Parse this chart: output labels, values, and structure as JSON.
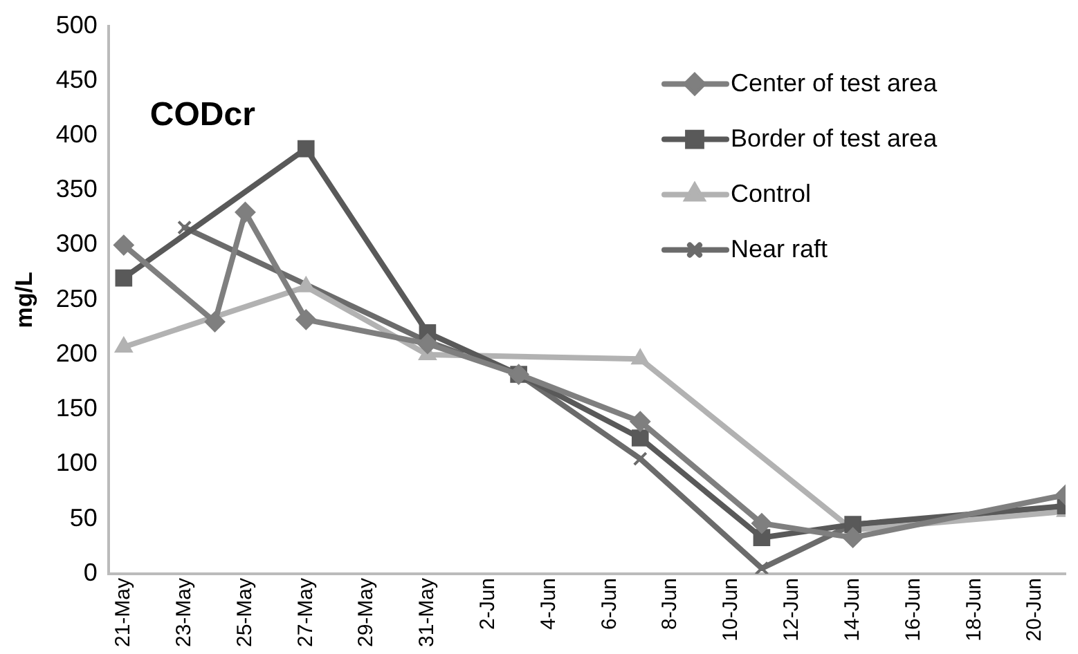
{
  "chart_data": {
    "type": "line",
    "title": "CODcr",
    "ylabel": "mg/L",
    "xlim": [
      "--05-20T12:00",
      "--06-21"
    ],
    "xticks": [
      {
        "value": "--05-21",
        "label": "21-May"
      },
      {
        "value": "--05-23",
        "label": "23-May"
      },
      {
        "value": "--05-25",
        "label": "25-May"
      },
      {
        "value": "--05-27",
        "label": "27-May"
      },
      {
        "value": "--05-29",
        "label": "29-May"
      },
      {
        "value": "--05-31",
        "label": "31-May"
      },
      {
        "value": "--06-02",
        "label": "2-Jun"
      },
      {
        "value": "--06-04",
        "label": "4-Jun"
      },
      {
        "value": "--06-06",
        "label": "6-Jun"
      },
      {
        "value": "--06-08",
        "label": "8-Jun"
      },
      {
        "value": "--06-10",
        "label": "10-Jun"
      },
      {
        "value": "--06-12",
        "label": "12-Jun"
      },
      {
        "value": "--06-14",
        "label": "14-Jun"
      },
      {
        "value": "--06-16",
        "label": "16-Jun"
      },
      {
        "value": "--06-18",
        "label": "18-Jun"
      },
      {
        "value": "--06-20",
        "label": "20-Jun"
      }
    ],
    "ylim": [
      0,
      500
    ],
    "yticks": [
      0,
      50,
      100,
      150,
      200,
      250,
      300,
      350,
      400,
      450,
      500
    ],
    "grid": false,
    "legend": "top right",
    "line_style": "solid",
    "series": [
      {
        "name": "Center of test area",
        "color": "#7f7f7f",
        "marker": "diamond",
        "x": [
          "--05-21",
          "--05-24",
          "--05-25",
          "--05-27",
          "--05-31",
          "--06-03",
          "--06-07",
          "--06-11",
          "--06-14",
          "--06-21"
        ],
        "values": [
          300,
          230,
          330,
          232,
          210,
          182,
          139,
          46,
          33,
          72
        ]
      },
      {
        "name": "Border of test area",
        "color": "#595959",
        "marker": "square",
        "x": [
          "--05-21",
          "--05-27",
          "--05-31",
          "--06-03",
          "--06-07",
          "--06-11",
          "--06-14",
          "--06-21"
        ],
        "values": [
          270,
          388,
          220,
          182,
          124,
          33,
          45,
          62
        ]
      },
      {
        "name": "Control",
        "color": "#b2b2b2",
        "marker": "triangle",
        "x": [
          "--05-21",
          "--05-27",
          "--05-31",
          "--06-07",
          "--06-14",
          "--06-21"
        ],
        "values": [
          207,
          262,
          200,
          196,
          40,
          57
        ]
      },
      {
        "name": "Near raft",
        "color": "#6b6b6b",
        "marker": "cross",
        "x": [
          "--05-23",
          "--05-31",
          "--06-03",
          "--06-07",
          "--06-11",
          "--06-14",
          "--06-21"
        ],
        "values": [
          316,
          212,
          182,
          105,
          5,
          45,
          60
        ]
      }
    ]
  }
}
